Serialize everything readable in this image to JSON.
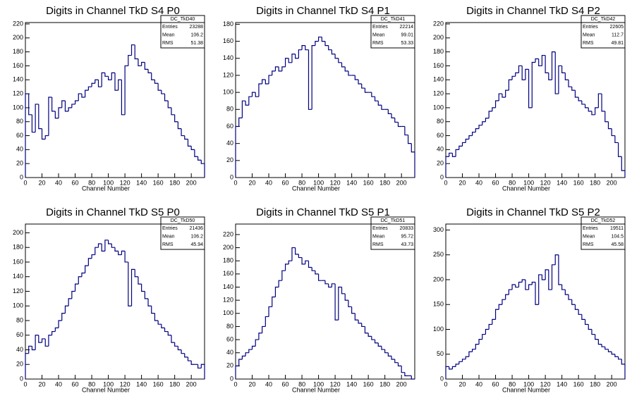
{
  "chart_data": [
    {
      "type": "histogram",
      "title": "Digits in Channel TkD S4 P0",
      "x_label": "Channel Number",
      "color": "#000080",
      "bins": [
        0,
        4,
        8,
        12,
        16,
        20,
        24,
        28,
        32,
        36,
        40,
        44,
        48,
        52,
        56,
        60,
        64,
        68,
        72,
        76,
        80,
        84,
        88,
        92,
        96,
        100,
        104,
        108,
        112,
        116,
        120,
        124,
        128,
        132,
        136,
        140,
        144,
        148,
        152,
        156,
        160,
        164,
        168,
        172,
        176,
        180,
        184,
        188,
        192,
        196,
        200,
        204,
        208,
        212,
        216
      ],
      "values": [
        120,
        90,
        65,
        105,
        70,
        55,
        60,
        115,
        95,
        85,
        100,
        110,
        95,
        100,
        105,
        110,
        120,
        115,
        125,
        130,
        135,
        140,
        130,
        150,
        145,
        140,
        150,
        125,
        140,
        90,
        160,
        175,
        190,
        170,
        160,
        165,
        155,
        150,
        140,
        135,
        125,
        120,
        110,
        100,
        90,
        80,
        70,
        60,
        55,
        45,
        40,
        30,
        25,
        20
      ],
      "xlim": [
        0,
        216
      ],
      "xticks": [
        0,
        20,
        40,
        60,
        80,
        100,
        120,
        140,
        160,
        180,
        200
      ],
      "ylim": [
        0,
        222
      ],
      "yticks": [
        0,
        20,
        40,
        60,
        80,
        100,
        120,
        140,
        160,
        180,
        200,
        220
      ],
      "stats": {
        "name": "DC_TkD40",
        "labels": [
          "Entries",
          "Mean",
          "RMS"
        ],
        "values": [
          23288,
          106.2,
          51.38
        ]
      }
    },
    {
      "type": "histogram",
      "title": "Digits in Channel TkD S4 P1",
      "x_label": "Channel Number",
      "color": "#000080",
      "bins": [
        0,
        4,
        8,
        12,
        16,
        20,
        24,
        28,
        32,
        36,
        40,
        44,
        48,
        52,
        56,
        60,
        64,
        68,
        72,
        76,
        80,
        84,
        88,
        92,
        96,
        100,
        104,
        108,
        112,
        116,
        120,
        124,
        128,
        132,
        136,
        140,
        144,
        148,
        152,
        156,
        160,
        164,
        168,
        172,
        176,
        180,
        184,
        188,
        192,
        196,
        200,
        204,
        208,
        212,
        216
      ],
      "values": [
        60,
        70,
        90,
        85,
        95,
        100,
        95,
        110,
        115,
        110,
        120,
        125,
        130,
        125,
        130,
        140,
        135,
        145,
        140,
        150,
        155,
        150,
        80,
        155,
        160,
        165,
        160,
        155,
        150,
        145,
        140,
        135,
        130,
        125,
        120,
        120,
        115,
        110,
        105,
        100,
        100,
        95,
        90,
        85,
        80,
        80,
        75,
        70,
        65,
        60,
        60,
        50,
        40,
        30
      ],
      "xlim": [
        0,
        216
      ],
      "xticks": [
        0,
        20,
        40,
        60,
        80,
        100,
        120,
        140,
        160,
        180,
        200
      ],
      "ylim": [
        0,
        182
      ],
      "yticks": [
        0,
        20,
        40,
        60,
        80,
        100,
        120,
        140,
        160,
        180
      ],
      "stats": {
        "name": "DC_TkD41",
        "labels": [
          "Entries",
          "Mean",
          "RMS"
        ],
        "values": [
          22214,
          99.01,
          53.33
        ]
      }
    },
    {
      "type": "histogram",
      "title": "Digits in Channel TkD S4 P2",
      "x_label": "Channel Number",
      "color": "#000080",
      "bins": [
        0,
        4,
        8,
        12,
        16,
        20,
        24,
        28,
        32,
        36,
        40,
        44,
        48,
        52,
        56,
        60,
        64,
        68,
        72,
        76,
        80,
        84,
        88,
        92,
        96,
        100,
        104,
        108,
        112,
        116,
        120,
        124,
        128,
        132,
        136,
        140,
        144,
        148,
        152,
        156,
        160,
        164,
        168,
        172,
        176,
        180,
        184,
        188,
        192,
        196,
        200,
        204,
        208,
        212,
        216
      ],
      "values": [
        30,
        35,
        30,
        40,
        45,
        50,
        55,
        60,
        65,
        70,
        75,
        80,
        85,
        95,
        100,
        110,
        120,
        115,
        125,
        140,
        145,
        150,
        160,
        140,
        155,
        100,
        165,
        170,
        160,
        175,
        150,
        140,
        180,
        120,
        160,
        150,
        140,
        130,
        125,
        115,
        110,
        105,
        100,
        95,
        90,
        100,
        120,
        95,
        80,
        70,
        60,
        50,
        30,
        10
      ],
      "xlim": [
        0,
        216
      ],
      "xticks": [
        0,
        20,
        40,
        60,
        80,
        100,
        120,
        140,
        160,
        180,
        200
      ],
      "ylim": [
        0,
        222
      ],
      "yticks": [
        0,
        20,
        40,
        60,
        80,
        100,
        120,
        140,
        160,
        180,
        200,
        220
      ],
      "stats": {
        "name": "DC_TkD42",
        "labels": [
          "Entries",
          "Mean",
          "RMS"
        ],
        "values": [
          22605,
          112.7,
          49.81
        ]
      }
    },
    {
      "type": "histogram",
      "title": "Digits in Channel TkD S5 P0",
      "x_label": "Channel Number",
      "color": "#000080",
      "bins": [
        0,
        4,
        8,
        12,
        16,
        20,
        24,
        28,
        32,
        36,
        40,
        44,
        48,
        52,
        56,
        60,
        64,
        68,
        72,
        76,
        80,
        84,
        88,
        92,
        96,
        100,
        104,
        108,
        112,
        116,
        120,
        124,
        128,
        132,
        136,
        140,
        144,
        148,
        152,
        156,
        160,
        164,
        168,
        172,
        176,
        180,
        184,
        188,
        192,
        196,
        200,
        204,
        208,
        212,
        216
      ],
      "values": [
        35,
        45,
        40,
        60,
        50,
        55,
        45,
        60,
        65,
        70,
        80,
        90,
        100,
        110,
        120,
        130,
        140,
        145,
        155,
        165,
        170,
        180,
        185,
        175,
        190,
        185,
        180,
        175,
        170,
        175,
        160,
        100,
        150,
        140,
        130,
        120,
        110,
        100,
        90,
        80,
        75,
        70,
        65,
        60,
        50,
        45,
        40,
        35,
        30,
        25,
        20,
        20,
        15,
        20
      ],
      "xlim": [
        0,
        216
      ],
      "xticks": [
        0,
        20,
        40,
        60,
        80,
        100,
        120,
        140,
        160,
        180,
        200
      ],
      "ylim": [
        0,
        212
      ],
      "yticks": [
        0,
        20,
        40,
        60,
        80,
        100,
        120,
        140,
        160,
        180,
        200
      ],
      "stats": {
        "name": "DC_TkD50",
        "labels": [
          "Entries",
          "Mean",
          "RMS"
        ],
        "values": [
          21436,
          106.2,
          45.94
        ]
      }
    },
    {
      "type": "histogram",
      "title": "Digits in Channel TkD S5 P1",
      "x_label": "Channel Number",
      "color": "#000080",
      "bins": [
        0,
        4,
        8,
        12,
        16,
        20,
        24,
        28,
        32,
        36,
        40,
        44,
        48,
        52,
        56,
        60,
        64,
        68,
        72,
        76,
        80,
        84,
        88,
        92,
        96,
        100,
        104,
        108,
        112,
        116,
        120,
        124,
        128,
        132,
        136,
        140,
        144,
        148,
        152,
        156,
        160,
        164,
        168,
        172,
        176,
        180,
        184,
        188,
        192,
        196,
        200,
        204,
        208,
        212,
        216
      ],
      "values": [
        20,
        30,
        35,
        40,
        45,
        50,
        60,
        70,
        80,
        95,
        110,
        125,
        140,
        150,
        165,
        175,
        180,
        200,
        190,
        185,
        175,
        180,
        170,
        165,
        160,
        150,
        150,
        145,
        140,
        145,
        90,
        140,
        130,
        120,
        110,
        100,
        90,
        85,
        80,
        70,
        65,
        60,
        55,
        50,
        45,
        40,
        35,
        30,
        25,
        20,
        10,
        5,
        5,
        0
      ],
      "xlim": [
        0,
        216
      ],
      "xticks": [
        0,
        20,
        40,
        60,
        80,
        100,
        120,
        140,
        160,
        180,
        200
      ],
      "ylim": [
        0,
        236
      ],
      "yticks": [
        0,
        20,
        40,
        60,
        80,
        100,
        120,
        140,
        160,
        180,
        200,
        220
      ],
      "stats": {
        "name": "DC_TkD51",
        "labels": [
          "Entries",
          "Mean",
          "RMS"
        ],
        "values": [
          20833,
          95.72,
          43.73
        ]
      }
    },
    {
      "type": "histogram",
      "title": "Digits in Channel TkD S5 P2",
      "x_label": "Channel Number",
      "color": "#000080",
      "bins": [
        0,
        4,
        8,
        12,
        16,
        20,
        24,
        28,
        32,
        36,
        40,
        44,
        48,
        52,
        56,
        60,
        64,
        68,
        72,
        76,
        80,
        84,
        88,
        92,
        96,
        100,
        104,
        108,
        112,
        116,
        120,
        124,
        128,
        132,
        136,
        140,
        144,
        148,
        152,
        156,
        160,
        164,
        168,
        172,
        176,
        180,
        184,
        188,
        192,
        196,
        200,
        204,
        208,
        212,
        216
      ],
      "values": [
        25,
        20,
        25,
        30,
        35,
        40,
        45,
        55,
        60,
        70,
        80,
        90,
        100,
        110,
        120,
        140,
        150,
        160,
        170,
        180,
        190,
        185,
        195,
        200,
        180,
        190,
        195,
        150,
        210,
        200,
        220,
        180,
        230,
        250,
        190,
        180,
        170,
        160,
        150,
        140,
        130,
        120,
        110,
        100,
        90,
        80,
        70,
        65,
        60,
        55,
        50,
        45,
        40,
        30
      ],
      "xlim": [
        0,
        216
      ],
      "xticks": [
        0,
        20,
        40,
        60,
        80,
        100,
        120,
        140,
        160,
        180,
        200
      ],
      "ylim": [
        0,
        312
      ],
      "yticks": [
        0,
        50,
        100,
        150,
        200,
        250,
        300
      ],
      "stats": {
        "name": "DC_TkD52",
        "labels": [
          "Entries",
          "Mean",
          "RMS"
        ],
        "values": [
          19511,
          104.5,
          45.58
        ]
      }
    }
  ]
}
